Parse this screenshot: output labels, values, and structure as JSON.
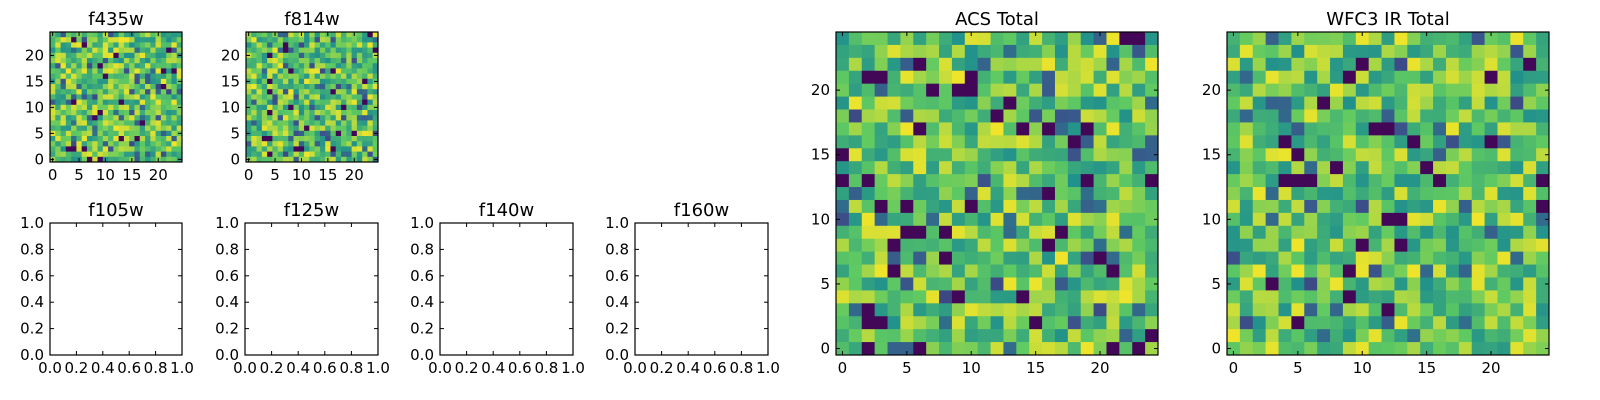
{
  "chart_data": [
    {
      "type": "heatmap",
      "title": "f435w",
      "colormap": "viridis",
      "xticks": [
        "0",
        "5",
        "10",
        "15",
        "20"
      ],
      "yticks": [
        "0",
        "5",
        "10",
        "15",
        "20"
      ],
      "xlim": [
        -0.5,
        24.5
      ],
      "ylim": [
        -0.5,
        24.5
      ],
      "grid_shape": [
        25,
        25
      ],
      "cell_values": "random noise, unreadable per cell"
    },
    {
      "type": "heatmap",
      "title": "f814w",
      "colormap": "viridis",
      "xticks": [
        "0",
        "5",
        "10",
        "15",
        "20"
      ],
      "yticks": [
        "0",
        "5",
        "10",
        "15",
        "20"
      ],
      "xlim": [
        -0.5,
        24.5
      ],
      "ylim": [
        -0.5,
        24.5
      ],
      "grid_shape": [
        25,
        25
      ],
      "cell_values": "random noise, unreadable per cell"
    },
    {
      "type": "heatmap",
      "title": "ACS Total",
      "colormap": "viridis",
      "xticks": [
        "0",
        "5",
        "10",
        "15",
        "20"
      ],
      "yticks": [
        "0",
        "5",
        "10",
        "15",
        "20"
      ],
      "xlim": [
        -0.5,
        24.5
      ],
      "ylim": [
        -0.5,
        24.5
      ],
      "grid_shape": [
        25,
        25
      ],
      "cell_values": "random noise, unreadable per cell"
    },
    {
      "type": "heatmap",
      "title": "WFC3 IR Total",
      "colormap": "viridis",
      "xticks": [
        "0",
        "5",
        "10",
        "15",
        "20"
      ],
      "yticks": [
        "0",
        "5",
        "10",
        "15",
        "20"
      ],
      "xlim": [
        -0.5,
        24.5
      ],
      "ylim": [
        -0.5,
        24.5
      ],
      "grid_shape": [
        25,
        25
      ],
      "cell_values": "random noise, unreadable per cell"
    },
    {
      "type": "line",
      "title": "f105w",
      "series": [],
      "xticks": [
        "0.0",
        "0.2",
        "0.4",
        "0.6",
        "0.8",
        "1.0"
      ],
      "yticks": [
        "0.0",
        "0.2",
        "0.4",
        "0.6",
        "0.8",
        "1.0"
      ],
      "xlim": [
        0,
        1
      ],
      "ylim": [
        0,
        1
      ]
    },
    {
      "type": "line",
      "title": "f125w",
      "series": [],
      "xticks": [
        "0.0",
        "0.2",
        "0.4",
        "0.6",
        "0.8",
        "1.0"
      ],
      "yticks": [
        "0.0",
        "0.2",
        "0.4",
        "0.6",
        "0.8",
        "1.0"
      ],
      "xlim": [
        0,
        1
      ],
      "ylim": [
        0,
        1
      ]
    },
    {
      "type": "line",
      "title": "f140w",
      "series": [],
      "xticks": [
        "0.0",
        "0.2",
        "0.4",
        "0.6",
        "0.8",
        "1.0"
      ],
      "yticks": [
        "0.0",
        "0.2",
        "0.4",
        "0.6",
        "0.8",
        "1.0"
      ],
      "xlim": [
        0,
        1
      ],
      "ylim": [
        0,
        1
      ]
    },
    {
      "type": "line",
      "title": "f160w",
      "series": [],
      "xticks": [
        "0.0",
        "0.2",
        "0.4",
        "0.6",
        "0.8",
        "1.0"
      ],
      "yticks": [
        "0.0",
        "0.2",
        "0.4",
        "0.6",
        "0.8",
        "1.0"
      ],
      "xlim": [
        0,
        1
      ],
      "ylim": [
        0,
        1
      ]
    }
  ]
}
